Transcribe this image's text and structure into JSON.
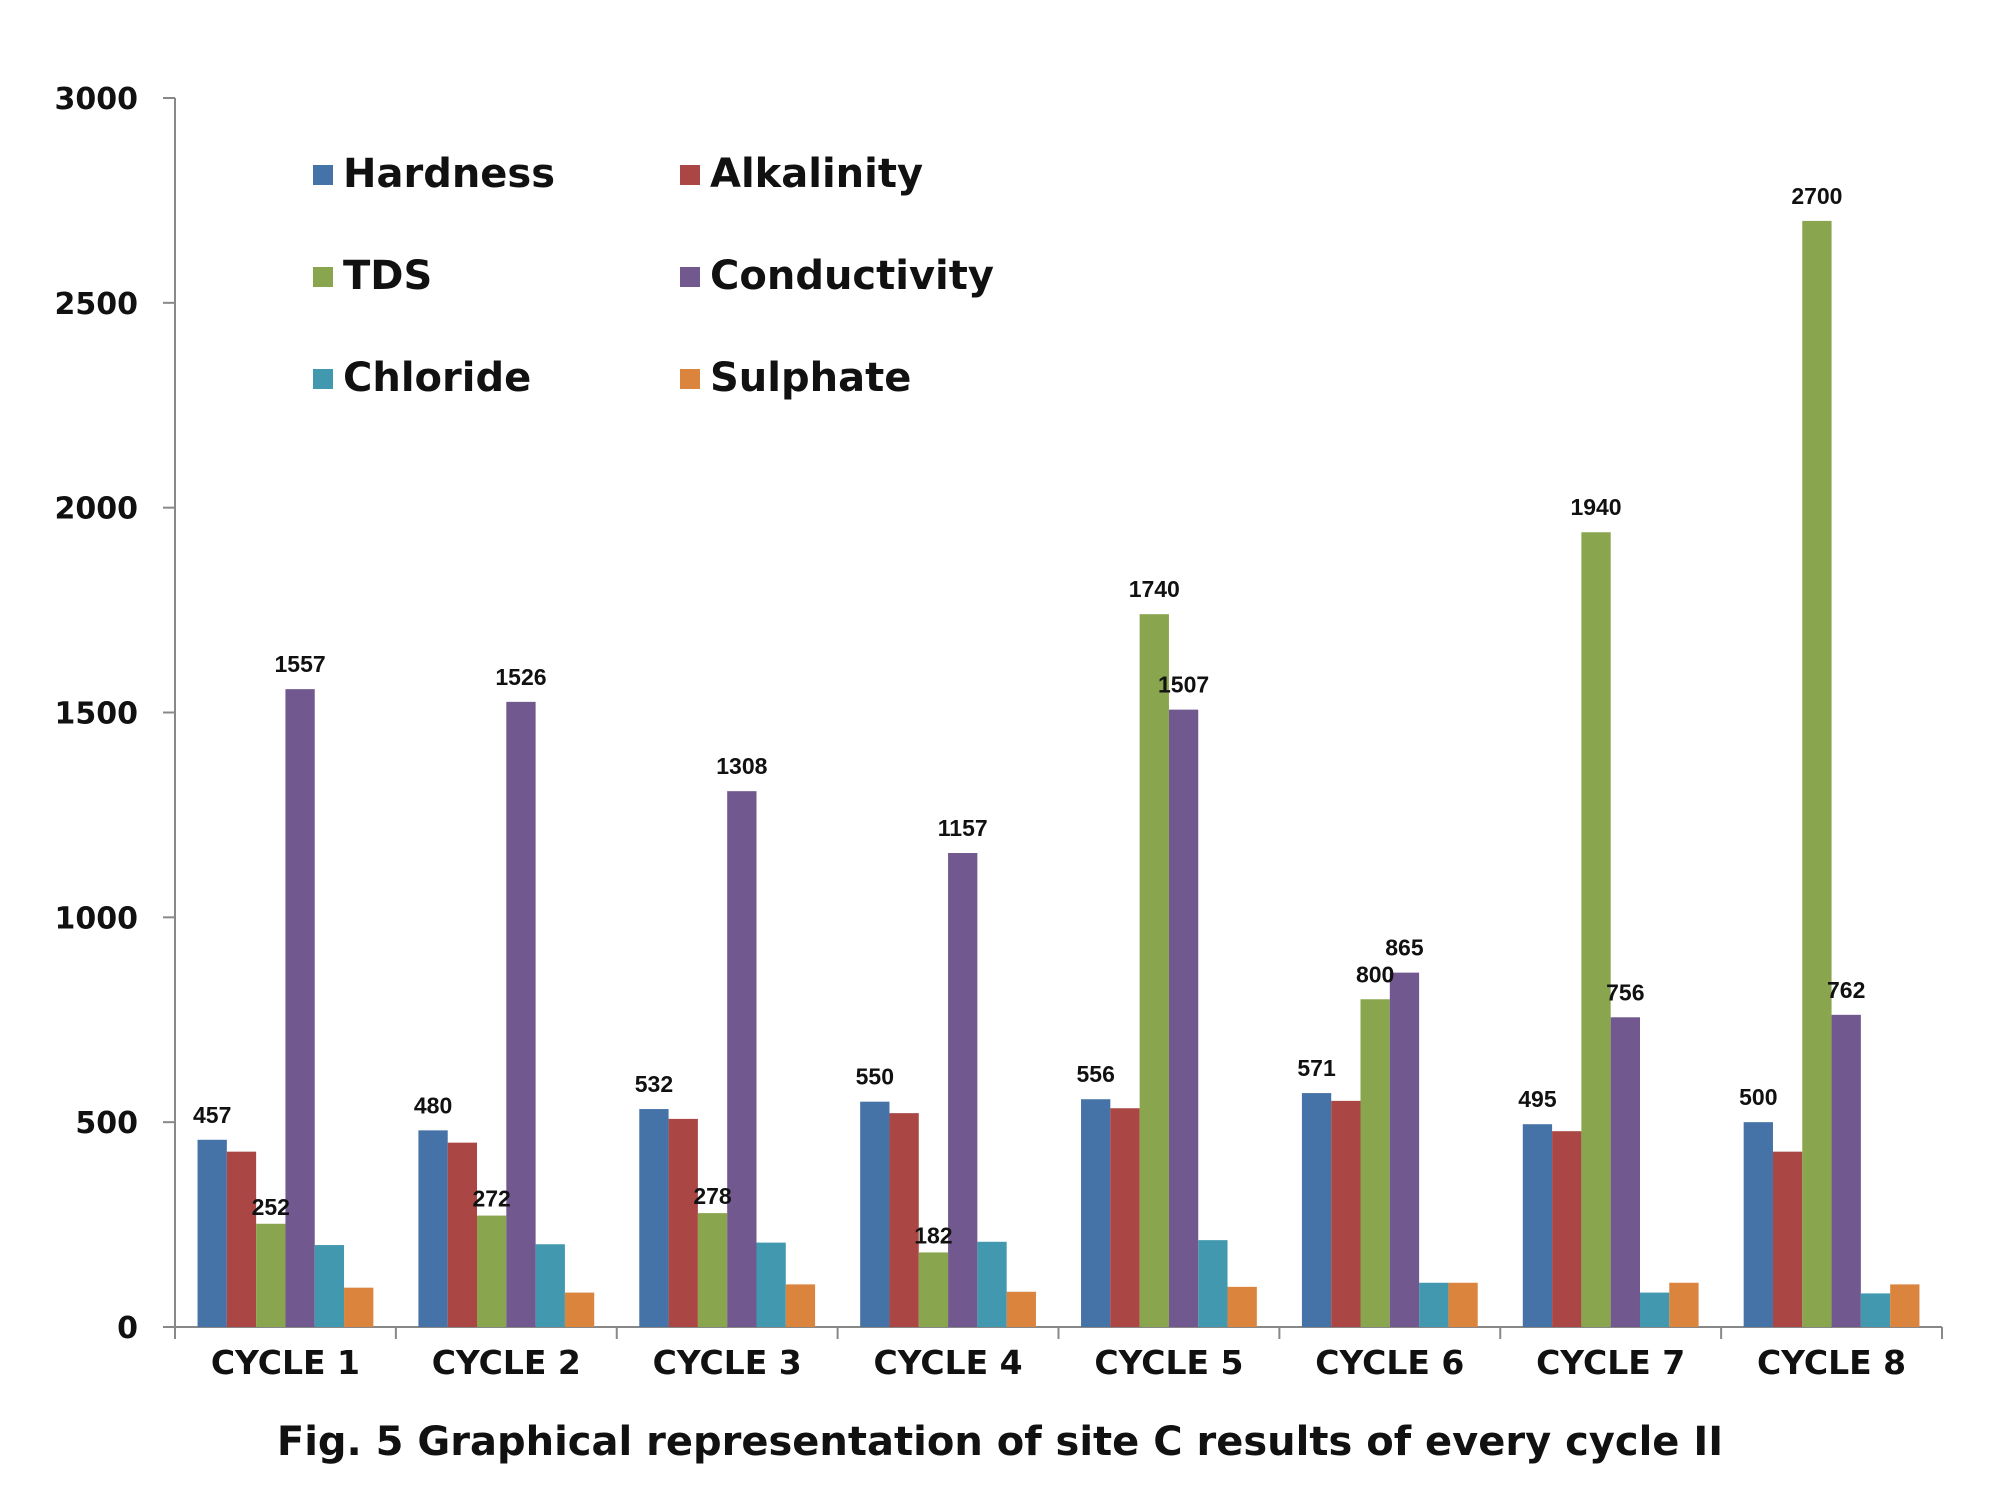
{
  "chart_data": {
    "type": "bar",
    "title": "",
    "caption": "Fig. 5 Graphical representation of site C results of every cycle II",
    "xlabel": "",
    "ylabel": "",
    "ylim": [
      0,
      3000
    ],
    "yticks": [
      0,
      500,
      1000,
      1500,
      2000,
      2500,
      3000
    ],
    "grid": false,
    "legend_position": "top-left",
    "categories": [
      "CYCLE 1",
      "CYCLE 2",
      "CYCLE 3",
      "CYCLE 4",
      "CYCLE 5",
      "CYCLE 6",
      "CYCLE 7",
      "CYCLE 8"
    ],
    "series": [
      {
        "name": "Hardness",
        "color": "#4572A7",
        "values": [
          457,
          480,
          532,
          550,
          556,
          571,
          495,
          500
        ]
      },
      {
        "name": "Alkalinity",
        "color": "#AA4643",
        "values": [
          428,
          450,
          508,
          522,
          534,
          552,
          478,
          428
        ]
      },
      {
        "name": "TDS",
        "color": "#89A54E",
        "values": [
          252,
          272,
          278,
          182,
          1740,
          800,
          1940,
          2700
        ]
      },
      {
        "name": "Conductivity",
        "color": "#71588F",
        "values": [
          1557,
          1526,
          1308,
          1157,
          1507,
          865,
          756,
          762
        ]
      },
      {
        "name": "Chloride",
        "color": "#4198AF",
        "values": [
          200,
          202,
          206,
          208,
          212,
          108,
          84,
          82
        ]
      },
      {
        "name": "Sulphate",
        "color": "#DB843D",
        "values": [
          96,
          84,
          104,
          86,
          98,
          108,
          108,
          104
        ]
      }
    ],
    "data_labels": [
      {
        "series": "Hardness",
        "values": [
          457,
          480,
          532,
          550,
          556,
          571,
          495,
          500
        ]
      },
      {
        "series": "TDS",
        "values": [
          252,
          272,
          278,
          182,
          1740,
          800,
          1940,
          2700
        ]
      },
      {
        "series": "Conductivity",
        "values": [
          1557,
          1526,
          1308,
          1157,
          1507,
          865,
          756,
          762
        ]
      }
    ]
  }
}
